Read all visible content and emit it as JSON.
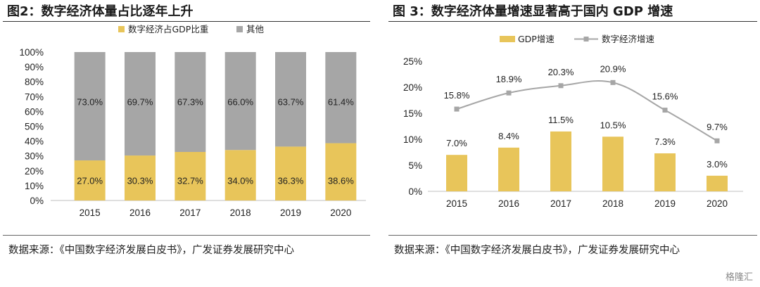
{
  "figure1": {
    "title": "图2：数字经济体量占比逐年上升",
    "source": "数据来源：《中国数字经济发展白皮书》，广发证券发展研究中心",
    "chart_data": {
      "type": "bar",
      "stacked": true,
      "categories": [
        "2015",
        "2016",
        "2017",
        "2018",
        "2019",
        "2020"
      ],
      "series": [
        {
          "name": "数字经济占GDP比重",
          "color": "#e8c55a",
          "values": [
            27.0,
            30.3,
            32.7,
            34.0,
            36.3,
            38.6
          ],
          "labels": [
            "27.0%",
            "30.3%",
            "32.7%",
            "34.0%",
            "36.3%",
            "38.6%"
          ]
        },
        {
          "name": "其他",
          "color": "#a6a6a6",
          "values": [
            73.0,
            69.7,
            67.3,
            66.0,
            63.7,
            61.4
          ],
          "labels": [
            "73.0%",
            "69.7%",
            "67.3%",
            "66.0%",
            "63.7%",
            "61.4%"
          ]
        }
      ],
      "ylim": [
        0,
        100
      ],
      "yticks": [
        "0%",
        "10%",
        "20%",
        "30%",
        "40%",
        "50%",
        "60%",
        "70%",
        "80%",
        "90%",
        "100%"
      ],
      "legend": "top"
    }
  },
  "figure2": {
    "title": "图 3：数字经济体量增速显著高于国内 GDP 增速",
    "source": "数据来源：《中国数字经济发展白皮书》，广发证券发展研究中心",
    "chart_data": {
      "type": "bar",
      "categories": [
        "2015",
        "2016",
        "2017",
        "2018",
        "2019",
        "2020"
      ],
      "series": [
        {
          "name": "GDP增速",
          "type": "bar",
          "color": "#e8c55a",
          "values": [
            7.0,
            8.4,
            11.5,
            10.5,
            7.3,
            3.0
          ],
          "labels": [
            "7.0%",
            "8.4%",
            "11.5%",
            "10.5%",
            "7.3%",
            "3.0%"
          ]
        },
        {
          "name": "数字经济增速",
          "type": "line",
          "color": "#a6a6a6",
          "values": [
            15.8,
            18.9,
            20.3,
            20.9,
            15.6,
            9.7
          ],
          "labels": [
            "15.8%",
            "18.9%",
            "20.3%",
            "20.9%",
            "15.6%",
            "9.7%"
          ]
        }
      ],
      "ylim": [
        0,
        25
      ],
      "yticks": [
        "0%",
        "5%",
        "10%",
        "15%",
        "20%",
        "25%"
      ],
      "legend": "top"
    }
  },
  "watermark": "格隆汇"
}
